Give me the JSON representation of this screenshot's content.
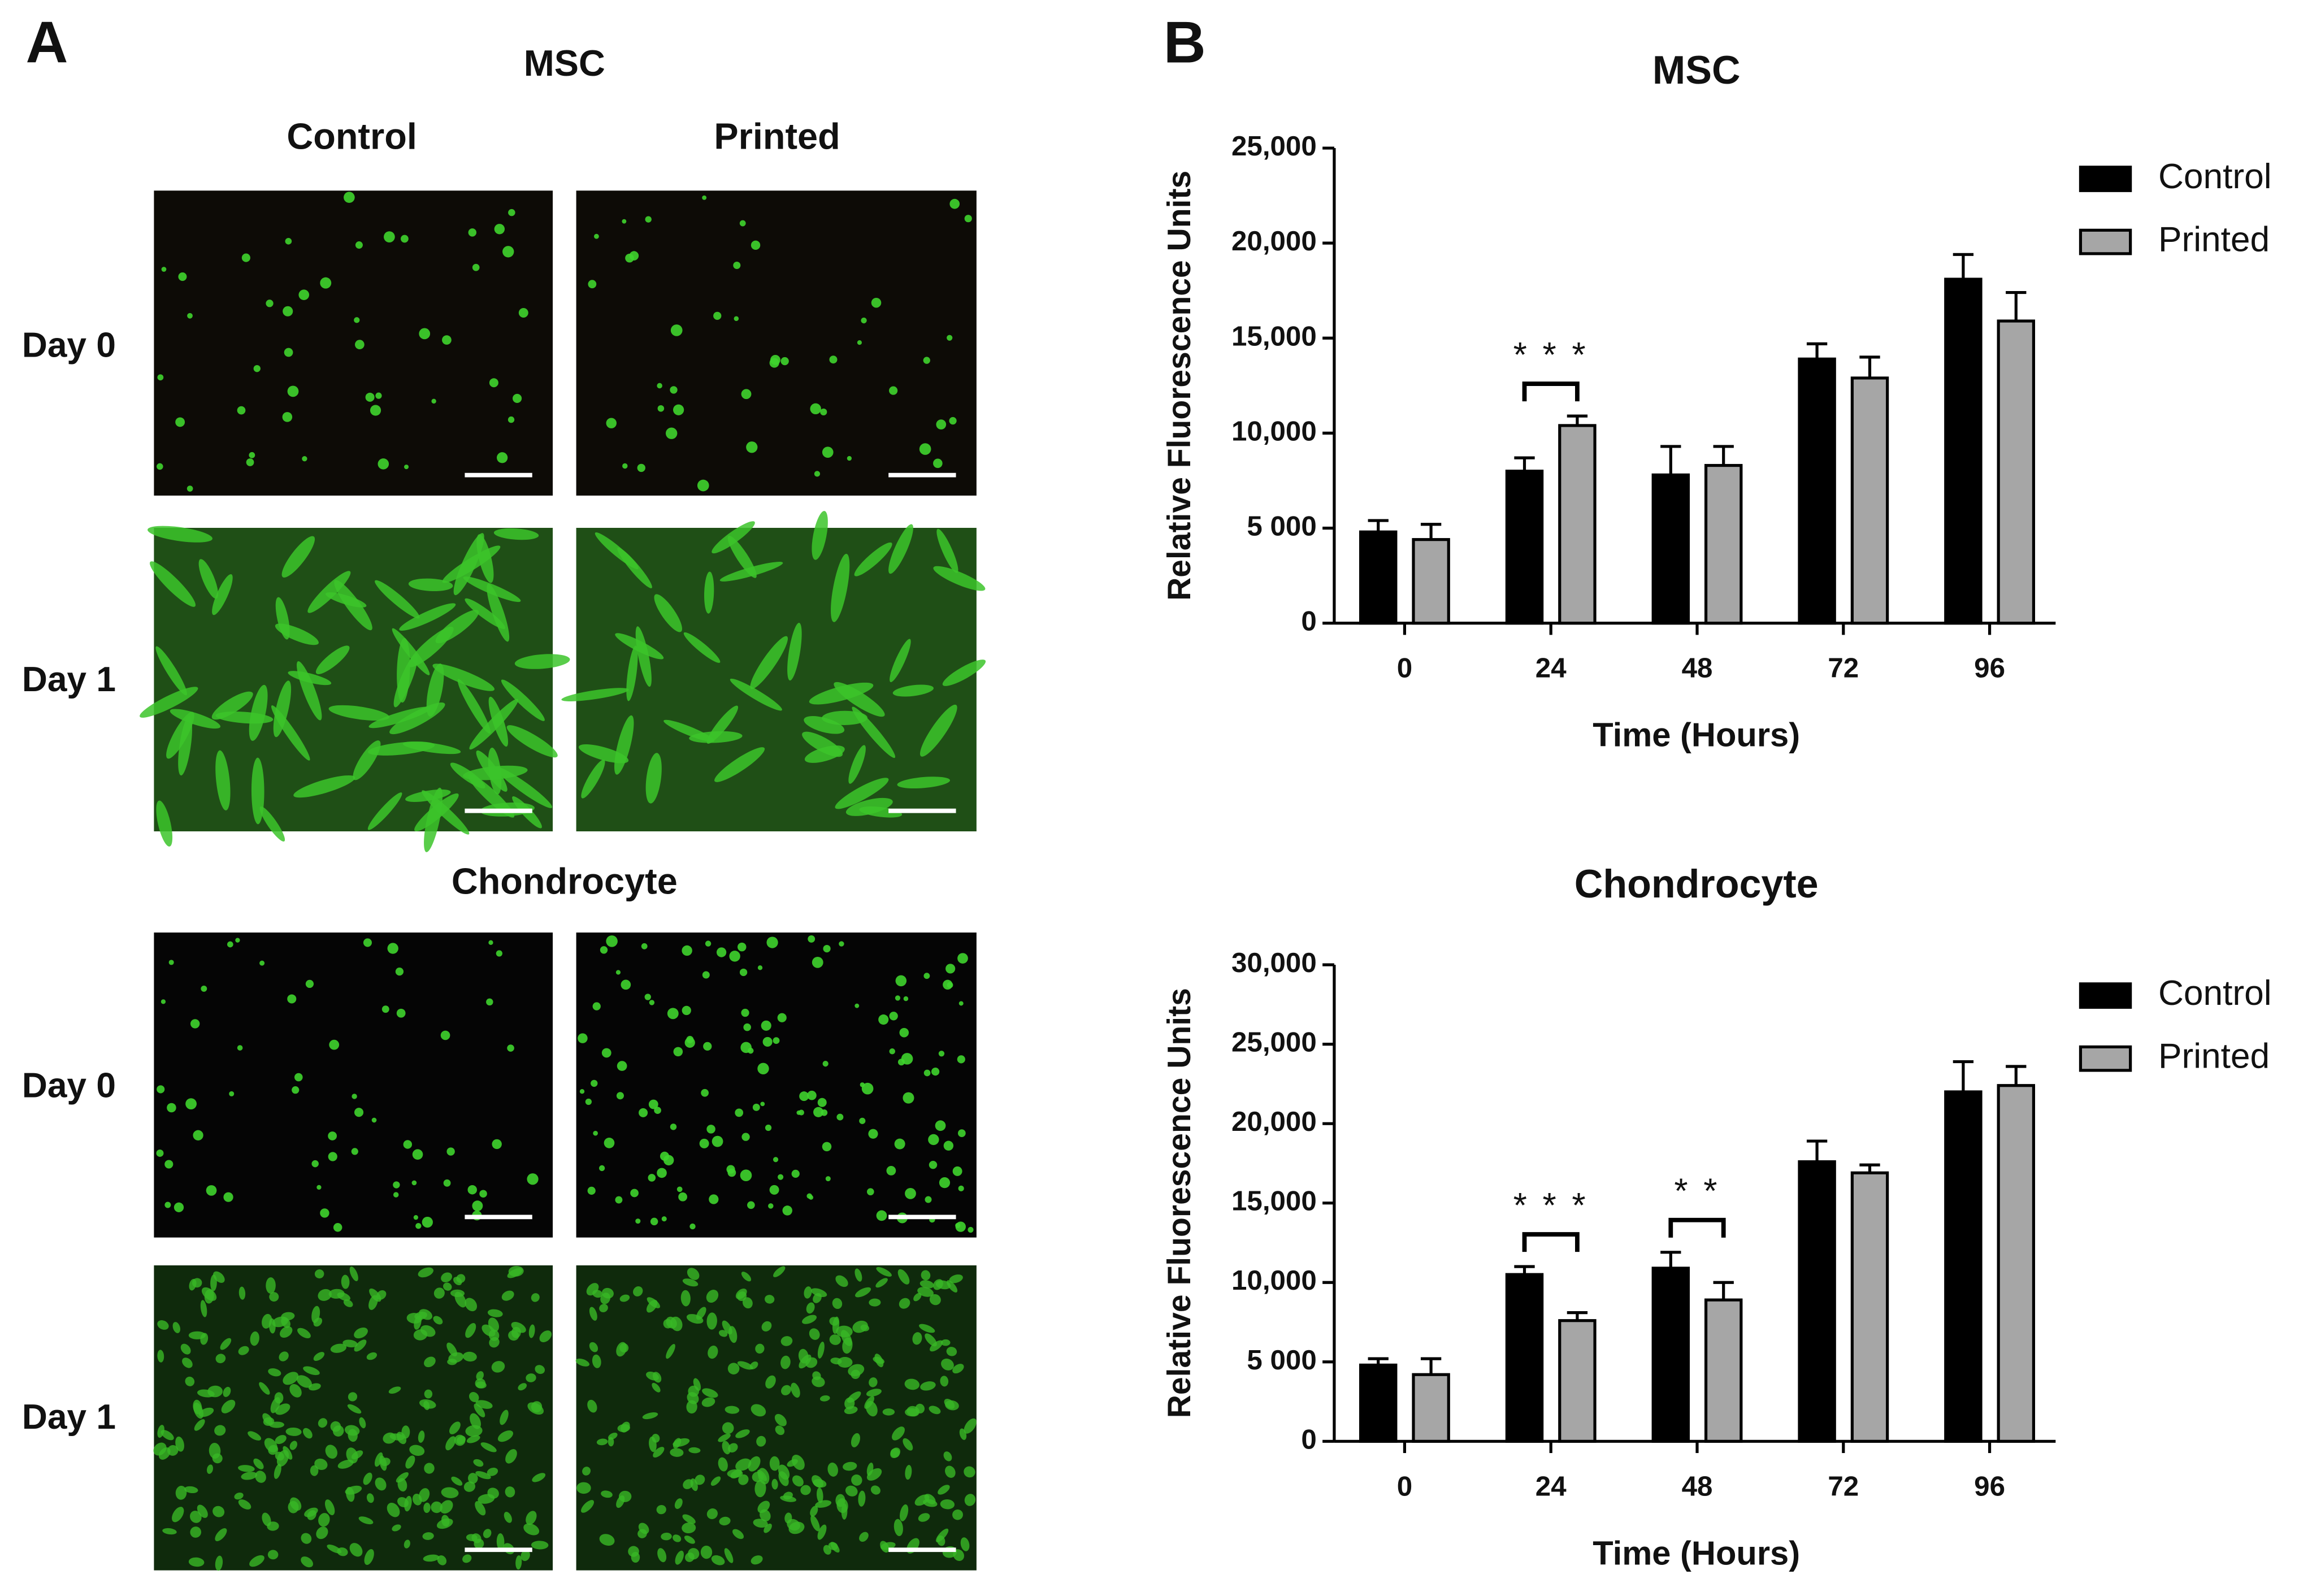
{
  "figure": {
    "panel_a_label": "A",
    "panel_b_label": "B",
    "panel_a": {
      "msc_title": "MSC",
      "chondrocyte_title": "Chondrocyte",
      "columns": [
        "Control",
        "Printed"
      ],
      "msc_rows": [
        "Day 0",
        "Day 1"
      ],
      "chondrocyte_rows": [
        "Day 0",
        "Day 1"
      ]
    }
  },
  "chart_data": [
    {
      "type": "bar",
      "title": "MSC",
      "x_label": "Time (Hours)",
      "y_label": "Relative Fluorescence Units",
      "categories": [
        "0",
        "24",
        "48",
        "72",
        "96"
      ],
      "series": [
        {
          "name": "Control",
          "color": "#000000",
          "values": [
            4800,
            8000,
            7800,
            13900,
            18100
          ],
          "errors": [
            600,
            700,
            1500,
            800,
            1300
          ]
        },
        {
          "name": "Printed",
          "color": "#a6a6a6",
          "values": [
            4400,
            10400,
            8300,
            12900,
            15900
          ],
          "errors": [
            800,
            500,
            1000,
            1100,
            1500
          ]
        }
      ],
      "ylim": [
        0,
        25000
      ],
      "yticks": [
        0,
        {
          "value": 5000,
          "label": "5 000"
        },
        {
          "value": 10000,
          "label": "10,000"
        },
        {
          "value": 15000,
          "label": "15,000"
        },
        {
          "value": 20000,
          "label": "20,000"
        },
        {
          "value": 25000,
          "label": "25,000"
        }
      ],
      "annotations": [
        {
          "text": "* * *",
          "category": "24"
        }
      ],
      "legend": "right",
      "grid": false
    },
    {
      "type": "bar",
      "title": "Chondrocyte",
      "x_label": "Time (Hours)",
      "y_label": "Relative Fluorescence Units",
      "categories": [
        "0",
        "24",
        "48",
        "72",
        "96"
      ],
      "series": [
        {
          "name": "Control",
          "color": "#000000",
          "values": [
            4800,
            10500,
            10900,
            17600,
            22000
          ],
          "errors": [
            400,
            500,
            1000,
            1300,
            1900
          ]
        },
        {
          "name": "Printed",
          "color": "#a6a6a6",
          "values": [
            4200,
            7600,
            8900,
            16900,
            22400
          ],
          "errors": [
            1000,
            500,
            1100,
            500,
            1200
          ]
        }
      ],
      "ylim": [
        0,
        30000
      ],
      "yticks": [
        0,
        {
          "value": 5000,
          "label": "5 000"
        },
        {
          "value": 10000,
          "label": "10,000"
        },
        {
          "value": 15000,
          "label": "15,000"
        },
        {
          "value": 20000,
          "label": "20,000"
        },
        {
          "value": 25000,
          "label": "25,000"
        },
        {
          "value": 30000,
          "label": "30,000"
        }
      ],
      "annotations": [
        {
          "text": "* * *",
          "category": "24"
        },
        {
          "text": "* *",
          "category": "48"
        }
      ],
      "legend": "right",
      "grid": false
    }
  ]
}
